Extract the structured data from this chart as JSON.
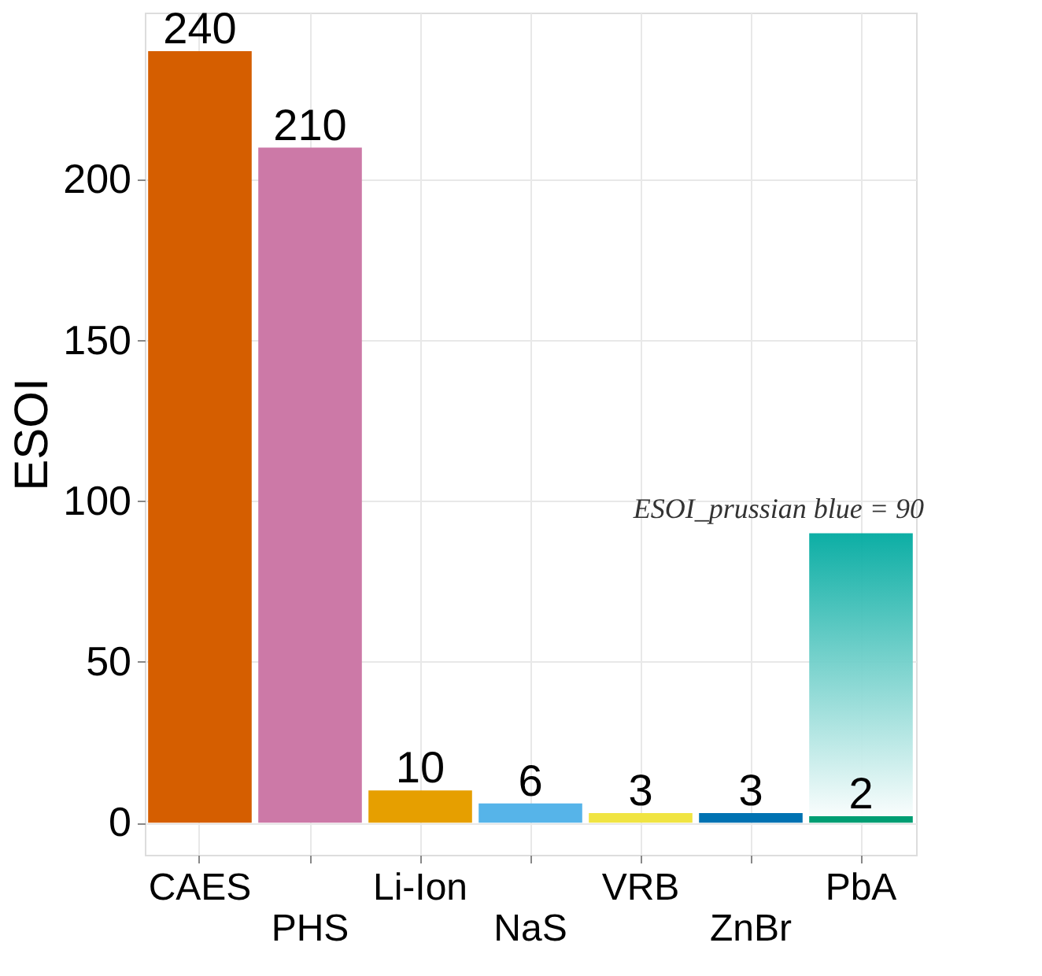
{
  "chart_data": {
    "type": "bar",
    "ylabel": "ESOI",
    "categories": [
      "CAES",
      "PHS",
      "Li-Ion",
      "NaS",
      "VRB",
      "ZnBr",
      "PbA"
    ],
    "series": [
      {
        "colors": [
          "#d55e00",
          "#cc79a7",
          "#e69f00",
          "#56b4e9",
          "#f0e442",
          "#0072b2",
          "#009e73"
        ],
        "values": [
          240,
          210,
          10,
          6,
          3,
          3,
          2
        ],
        "value_labels": [
          "240",
          "210",
          "10",
          "6",
          "3",
          "3",
          "2"
        ]
      },
      {
        "type": "bar",
        "color": "#00aaa0",
        "values": [
          null,
          null,
          null,
          null,
          null,
          null,
          90
        ]
      }
    ],
    "annotations": [
      {
        "text": "ESOI_prussian blue = 90",
        "x": "PbA",
        "y": 90
      }
    ],
    "ylim": [
      -10,
      252
    ],
    "yticks": [
      0,
      50,
      100,
      150,
      200
    ],
    "grid": true
  }
}
